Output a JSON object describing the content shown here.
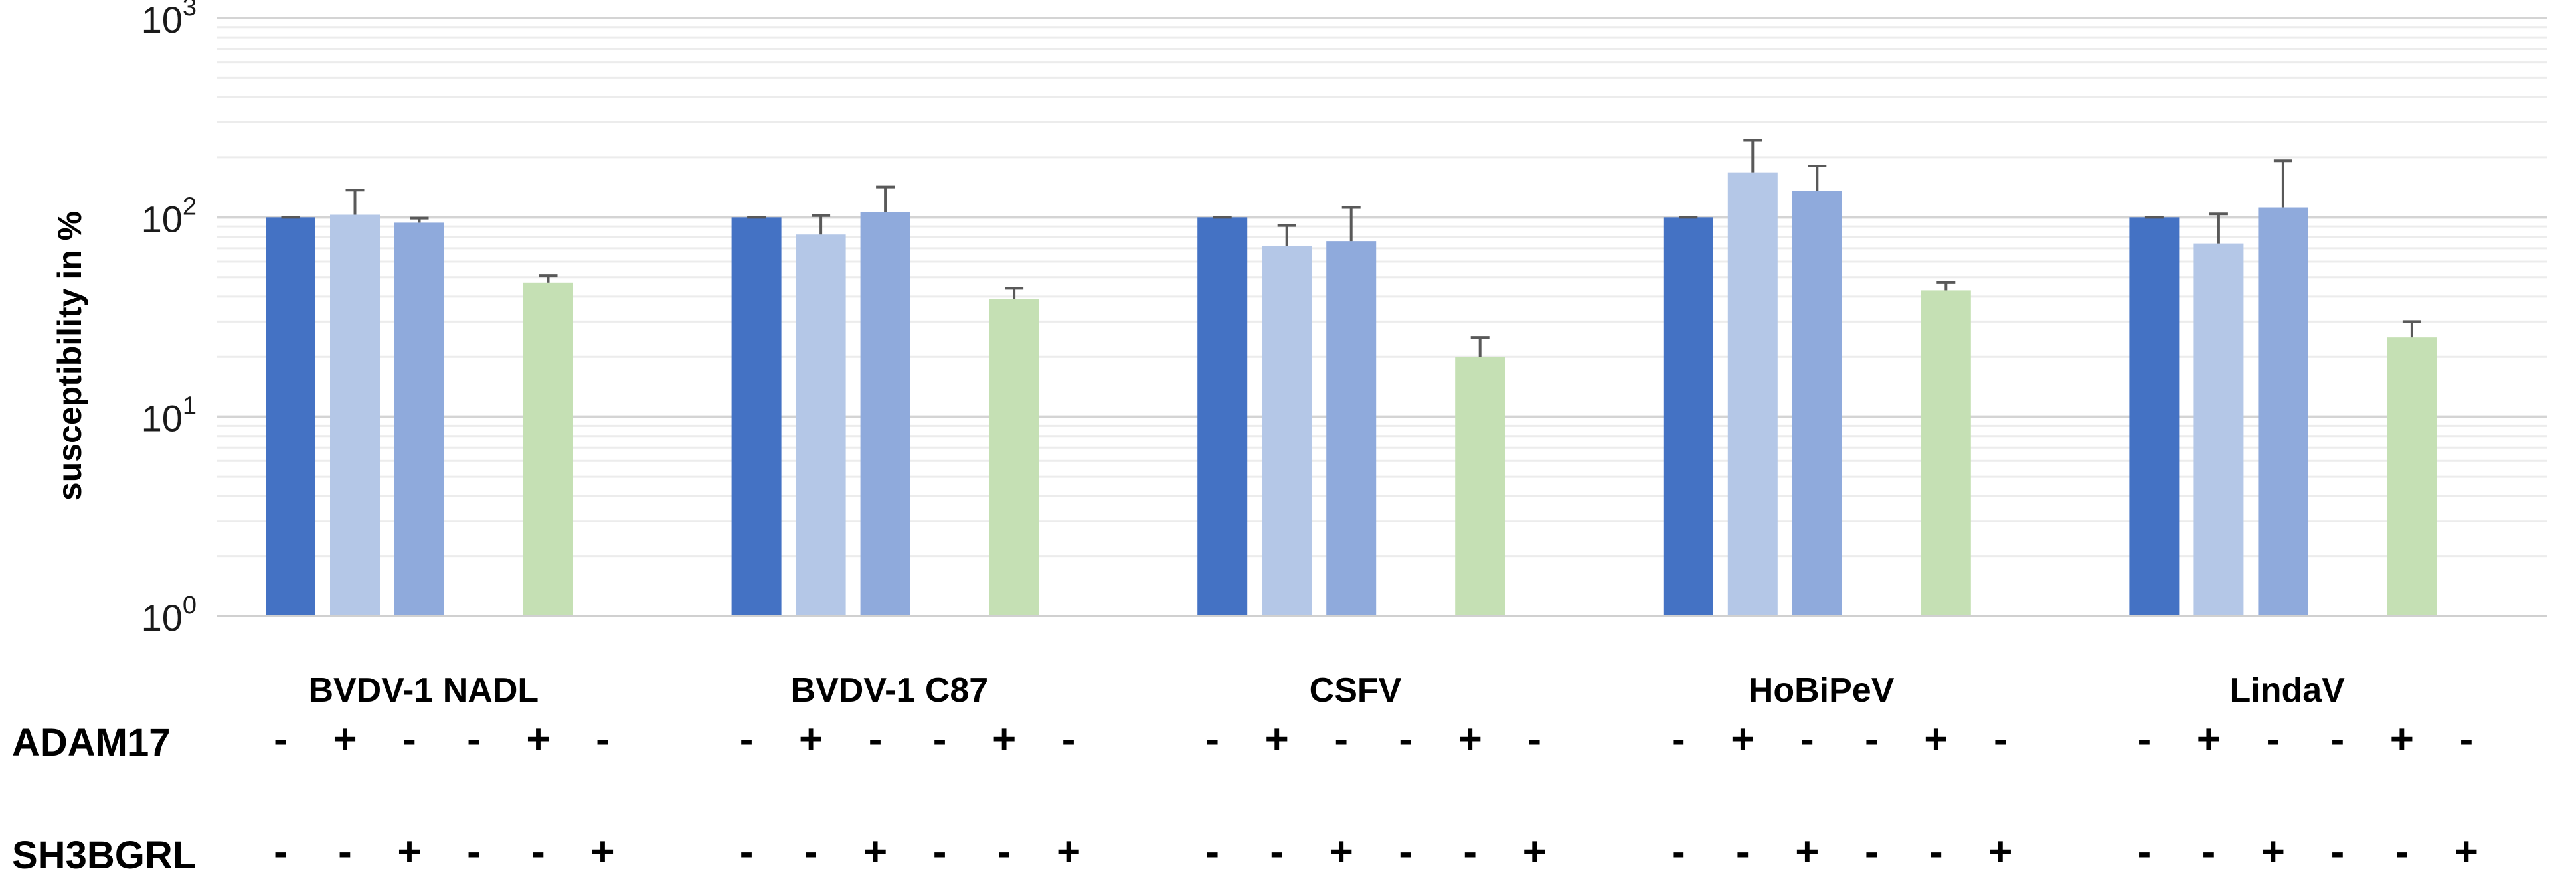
{
  "chart_data": {
    "type": "bar",
    "ylabel": "susceptibility in %",
    "yscale": "log",
    "ylim": [
      1,
      1000
    ],
    "yticks": [
      {
        "base": "10",
        "exp": "0"
      },
      {
        "base": "10",
        "exp": "1"
      },
      {
        "base": "10",
        "exp": "2"
      },
      {
        "base": "10",
        "exp": "3"
      }
    ],
    "categories": [
      "BVDV-1 NADL",
      "BVDV-1 C87",
      "CSFV",
      "HoBiPeV",
      "LindaV"
    ],
    "bars_per_group": 6,
    "series_colors": [
      "#4472c4",
      "#b4c7e7",
      "#8faadc",
      "#ffffff",
      "#c5e0b4",
      "#ffffff"
    ],
    "values": [
      [
        100,
        103,
        94,
        null,
        47,
        null
      ],
      [
        100,
        82,
        106,
        null,
        39,
        null
      ],
      [
        100,
        72,
        76,
        null,
        20,
        null
      ],
      [
        100,
        168,
        136,
        null,
        43,
        null
      ],
      [
        100,
        74,
        112,
        null,
        25,
        null
      ]
    ],
    "error_upper": [
      [
        100,
        137,
        99,
        null,
        51,
        null
      ],
      [
        100,
        102,
        142,
        null,
        44,
        null
      ],
      [
        100,
        91,
        112,
        null,
        25,
        null
      ],
      [
        100,
        243,
        181,
        null,
        47,
        null
      ],
      [
        100,
        104,
        192,
        null,
        30,
        null
      ]
    ],
    "condition_rows": [
      {
        "label": "ADAM17",
        "signs": [
          "-",
          "+",
          "-",
          "-",
          "+",
          "-"
        ]
      },
      {
        "label": "SH3BGRL",
        "signs": [
          "-",
          "-",
          "+",
          "-",
          "-",
          "+"
        ]
      }
    ]
  }
}
